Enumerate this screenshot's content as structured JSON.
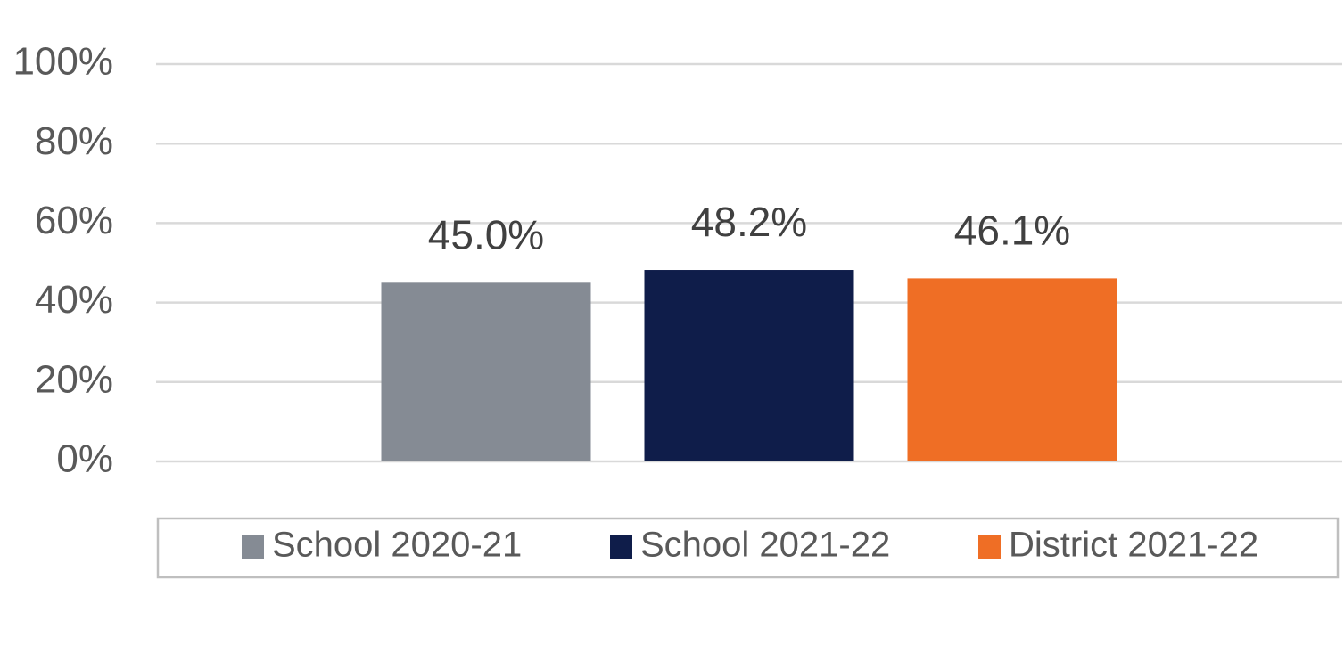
{
  "chart_data": {
    "type": "bar",
    "categories": [
      null
    ],
    "series": [
      {
        "name": "School 2020-21",
        "color": "#858b94",
        "values": [
          45.0
        ],
        "value_labels": [
          "45.0%"
        ]
      },
      {
        "name": "School 2021-22",
        "color": "#0f1d4a",
        "values": [
          48.2
        ],
        "value_labels": [
          "48.2%"
        ]
      },
      {
        "name": "District 2021-22",
        "color": "#ef6e25",
        "values": [
          46.1
        ],
        "value_labels": [
          "46.1%"
        ]
      }
    ],
    "ylim": [
      0,
      100
    ],
    "yticks": [
      {
        "value": 0,
        "label": "0%"
      },
      {
        "value": 20,
        "label": "20%"
      },
      {
        "value": 40,
        "label": "40%"
      },
      {
        "value": 60,
        "label": "60%"
      },
      {
        "value": 80,
        "label": "80%"
      },
      {
        "value": 100,
        "label": "100%"
      }
    ],
    "grid": true,
    "legend": "bottom"
  }
}
